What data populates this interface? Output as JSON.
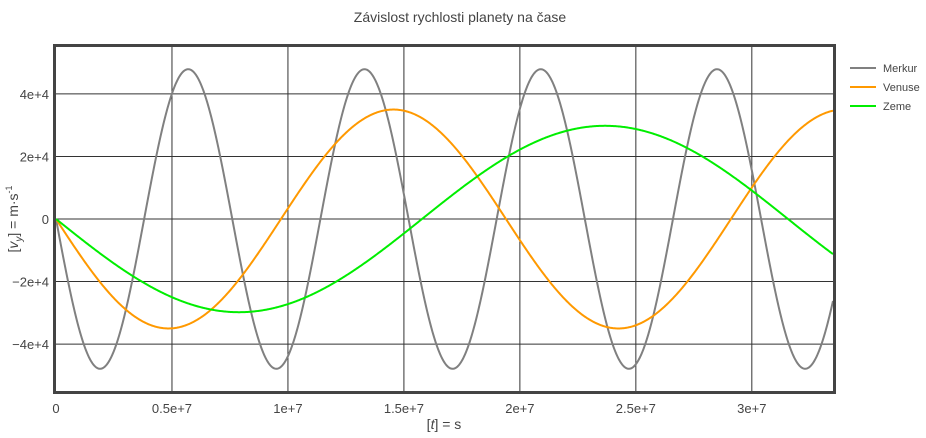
{
  "chart_data": {
    "type": "line",
    "title": "Závislost rychlosti planety na čase",
    "xlabel_prefix": "[",
    "xlabel_var": "t",
    "xlabel_suffix": "] = s",
    "ylabel_prefix": "[",
    "ylabel_var": "v",
    "ylabel_sub": "y",
    "ylabel_mid": "] = m·s",
    "ylabel_sup": "-1",
    "xlim": [
      0,
      33500000
    ],
    "ylim": [
      -55000,
      55000
    ],
    "x_ticks": [
      0,
      5000000,
      10000000,
      15000000,
      20000000,
      25000000,
      30000000
    ],
    "x_tick_labels": [
      "0",
      "0.5e+7",
      "1e+7",
      "1.5e+7",
      "2e+7",
      "2.5e+7",
      "3e+7"
    ],
    "y_ticks": [
      40000,
      20000,
      0,
      -20000,
      -40000
    ],
    "y_tick_labels": [
      "4e+4",
      "2e+4",
      "0",
      "−2e+4",
      "−4e+4"
    ],
    "grid": true,
    "legend_position": "right-top",
    "series": [
      {
        "name": "Merkur",
        "color": "#808080",
        "amplitude": 47900,
        "period": 7600000
      },
      {
        "name": "Venuse",
        "color": "#ff9900",
        "amplitude": 35000,
        "period": 19400000
      },
      {
        "name": "Zeme",
        "color": "#00ee00",
        "amplitude": 29800,
        "period": 31560000
      }
    ]
  }
}
